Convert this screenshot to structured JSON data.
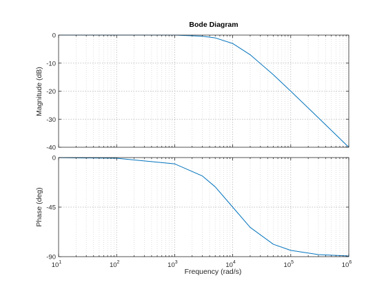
{
  "chart_data": {
    "type": "line",
    "title": "Bode Diagram",
    "xlabel": "Frequency  (rad/s)",
    "xscale": "log",
    "xlim": [
      10,
      1000000
    ],
    "x_ticks": [
      {
        "base": "10",
        "exp": "1"
      },
      {
        "base": "10",
        "exp": "2"
      },
      {
        "base": "10",
        "exp": "3"
      },
      {
        "base": "10",
        "exp": "4"
      },
      {
        "base": "10",
        "exp": "5"
      },
      {
        "base": "10",
        "exp": "6"
      }
    ],
    "grid": true,
    "line_color": "#0072BD",
    "subplots": [
      {
        "name": "magnitude",
        "ylabel": "Magnitude (dB)",
        "ylim": [
          -40,
          0
        ],
        "y_ticks": [
          "0",
          "-10",
          "-20",
          "-30",
          "-40"
        ],
        "y_tick_values": [
          0,
          -10,
          -20,
          -30,
          -40
        ],
        "x": [
          10,
          100,
          1000,
          3000,
          5000,
          10000,
          20000,
          50000,
          100000,
          300000,
          1000000
        ],
        "y": [
          0,
          0,
          0,
          -0.4,
          -1,
          -3,
          -7,
          -14.1,
          -20,
          -29.5,
          -40
        ]
      },
      {
        "name": "phase",
        "ylabel": "Phase (deg)",
        "ylim": [
          -90,
          0
        ],
        "y_ticks": [
          "0",
          "-45",
          "-90"
        ],
        "y_tick_values": [
          0,
          -45,
          -90
        ],
        "x": [
          10,
          100,
          1000,
          3000,
          5000,
          10000,
          20000,
          50000,
          100000,
          300000,
          1000000
        ],
        "y": [
          -0.1,
          -0.6,
          -5.7,
          -16.7,
          -26.6,
          -45,
          -63.4,
          -78.7,
          -84.3,
          -88.1,
          -89.4
        ]
      }
    ]
  }
}
